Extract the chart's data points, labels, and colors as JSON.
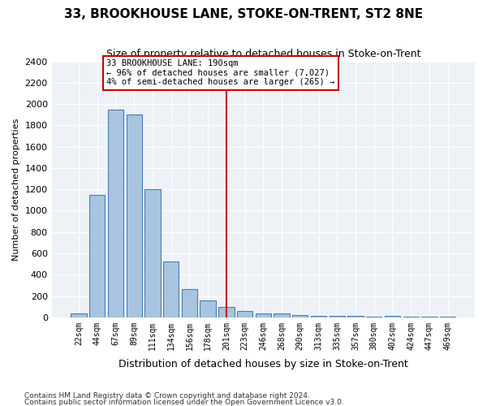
{
  "title": "33, BROOKHOUSE LANE, STOKE-ON-TRENT, ST2 8NE",
  "subtitle": "Size of property relative to detached houses in Stoke-on-Trent",
  "xlabel": "Distribution of detached houses by size in Stoke-on-Trent",
  "ylabel": "Number of detached properties",
  "footnote1": "Contains HM Land Registry data © Crown copyright and database right 2024.",
  "footnote2": "Contains public sector information licensed under the Open Government Licence v3.0.",
  "bar_labels": [
    "22sqm",
    "44sqm",
    "67sqm",
    "89sqm",
    "111sqm",
    "134sqm",
    "156sqm",
    "178sqm",
    "201sqm",
    "223sqm",
    "246sqm",
    "268sqm",
    "290sqm",
    "313sqm",
    "335sqm",
    "357sqm",
    "380sqm",
    "402sqm",
    "424sqm",
    "447sqm",
    "469sqm"
  ],
  "bar_values": [
    40,
    1150,
    1950,
    1900,
    1200,
    520,
    265,
    155,
    95,
    60,
    40,
    35,
    20,
    10,
    15,
    10,
    8,
    10,
    5,
    3,
    5
  ],
  "bar_color": "#a8c4e0",
  "bar_edge_color": "#4a7fb5",
  "bg_color": "#eef2f7",
  "grid_color": "#ffffff",
  "vline_x": 8,
  "vline_color": "#cc0000",
  "annotation_text": "33 BROOKHOUSE LANE: 190sqm\n← 96% of detached houses are smaller (7,027)\n4% of semi-detached houses are larger (265) →",
  "annotation_box_color": "#cc0000",
  "ylim": [
    0,
    2400
  ],
  "yticks": [
    0,
    200,
    400,
    600,
    800,
    1000,
    1200,
    1400,
    1600,
    1800,
    2000,
    2200,
    2400
  ]
}
